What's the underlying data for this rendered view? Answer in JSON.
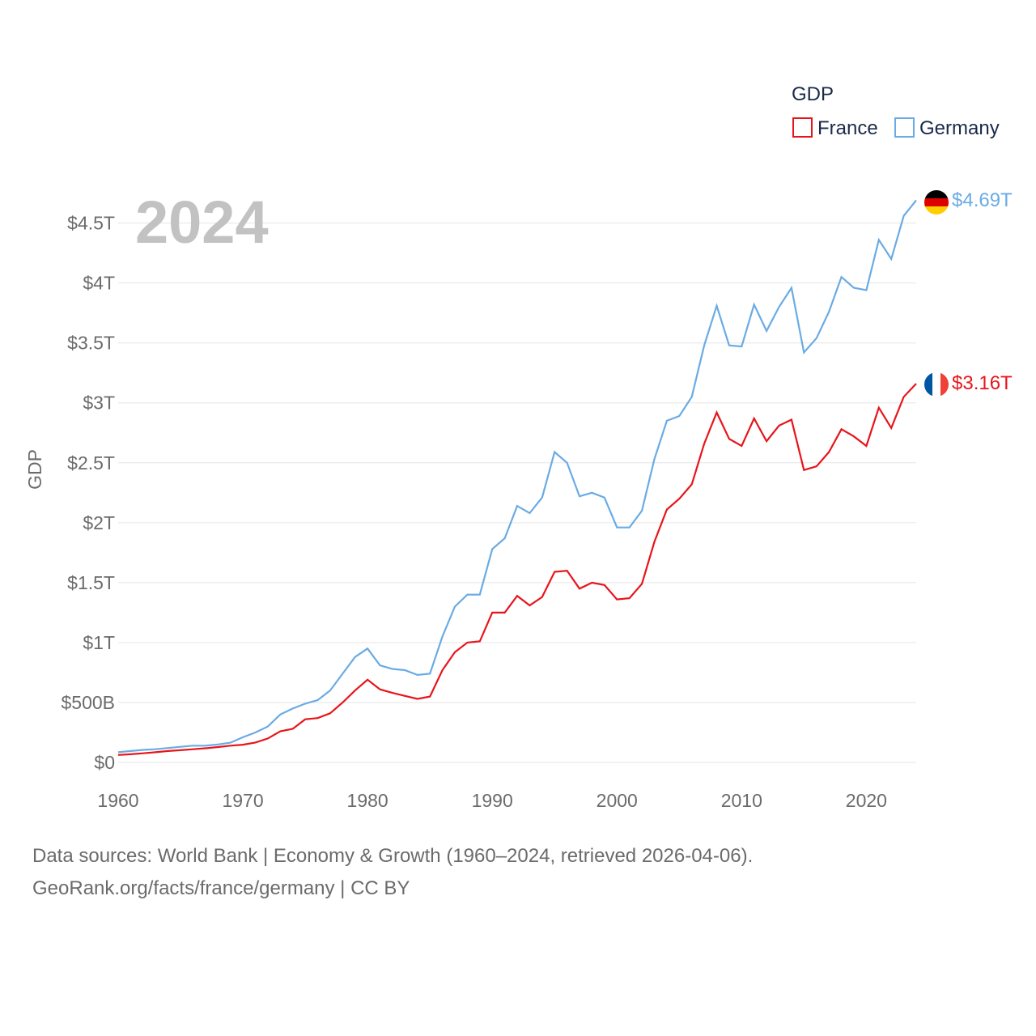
{
  "chart_data": {
    "type": "line",
    "title": "",
    "xlabel": "",
    "ylabel": "GDP",
    "year_display": "2024",
    "xlim": [
      1960,
      2024
    ],
    "ylim": [
      0,
      4700000000000
    ],
    "x_ticks": [
      1960,
      1970,
      1980,
      1990,
      2000,
      2010,
      2020
    ],
    "x_tick_labels": [
      "1960",
      "1970",
      "1980",
      "1990",
      "2000",
      "2010",
      "2020"
    ],
    "y_ticks": [
      0,
      500000000000,
      1000000000000,
      1500000000000,
      2000000000000,
      2500000000000,
      3000000000000,
      3500000000000,
      4000000000000,
      4500000000000
    ],
    "y_tick_labels": [
      "$0",
      "$500B",
      "$1T",
      "$1.5T",
      "$2T",
      "$2.5T",
      "$3T",
      "$3.5T",
      "$4T",
      "$4.5T"
    ],
    "legend": {
      "title": "GDP",
      "position": "top-right",
      "entries": [
        {
          "name": "France",
          "color": "#e8141b"
        },
        {
          "name": "Germany",
          "color": "#6aabe4"
        }
      ]
    },
    "x": [
      1960,
      1961,
      1962,
      1963,
      1964,
      1965,
      1966,
      1967,
      1968,
      1969,
      1970,
      1971,
      1972,
      1973,
      1974,
      1975,
      1976,
      1977,
      1978,
      1979,
      1980,
      1981,
      1982,
      1983,
      1984,
      1985,
      1986,
      1987,
      1988,
      1989,
      1990,
      1991,
      1992,
      1993,
      1994,
      1995,
      1996,
      1997,
      1998,
      1999,
      2000,
      2001,
      2002,
      2003,
      2004,
      2005,
      2006,
      2007,
      2008,
      2009,
      2010,
      2011,
      2012,
      2013,
      2014,
      2015,
      2016,
      2017,
      2018,
      2019,
      2020,
      2021,
      2022,
      2023,
      2024
    ],
    "series": [
      {
        "name": "Germany",
        "color": "#6aabe4",
        "end_label": "$4.69T",
        "flag": "germany-flag",
        "values": [
          0.085,
          0.095,
          0.105,
          0.11,
          0.12,
          0.13,
          0.14,
          0.14,
          0.15,
          0.165,
          0.21,
          0.25,
          0.3,
          0.4,
          0.45,
          0.49,
          0.52,
          0.6,
          0.74,
          0.88,
          0.95,
          0.81,
          0.78,
          0.77,
          0.73,
          0.74,
          1.05,
          1.3,
          1.4,
          1.4,
          1.78,
          1.87,
          2.14,
          2.08,
          2.21,
          2.59,
          2.5,
          2.22,
          2.25,
          2.21,
          1.96,
          1.96,
          2.1,
          2.53,
          2.85,
          2.89,
          3.05,
          3.48,
          3.81,
          3.48,
          3.47,
          3.82,
          3.6,
          3.8,
          3.96,
          3.42,
          3.54,
          3.76,
          4.05,
          3.96,
          3.94,
          4.36,
          4.2,
          4.56,
          4.69
        ]
      },
      {
        "name": "France",
        "color": "#e8141b",
        "end_label": "$3.16T",
        "flag": "france-flag",
        "values": [
          0.062,
          0.068,
          0.076,
          0.085,
          0.095,
          0.102,
          0.11,
          0.118,
          0.128,
          0.14,
          0.148,
          0.166,
          0.2,
          0.26,
          0.28,
          0.36,
          0.37,
          0.41,
          0.5,
          0.6,
          0.69,
          0.61,
          0.58,
          0.555,
          0.53,
          0.55,
          0.77,
          0.92,
          1.0,
          1.01,
          1.25,
          1.25,
          1.39,
          1.31,
          1.38,
          1.59,
          1.6,
          1.45,
          1.5,
          1.48,
          1.36,
          1.37,
          1.49,
          1.84,
          2.11,
          2.2,
          2.32,
          2.66,
          2.92,
          2.7,
          2.64,
          2.87,
          2.68,
          2.81,
          2.86,
          2.44,
          2.47,
          2.59,
          2.78,
          2.72,
          2.64,
          2.96,
          2.79,
          3.05,
          3.16
        ]
      }
    ],
    "values_unit": "trillions USD"
  },
  "footer": {
    "line1": "Data sources: World Bank | Economy & Growth (1960–2024, retrieved 2026-04-06).",
    "line2": "GeoRank.org/facts/france/germany | CC BY"
  }
}
